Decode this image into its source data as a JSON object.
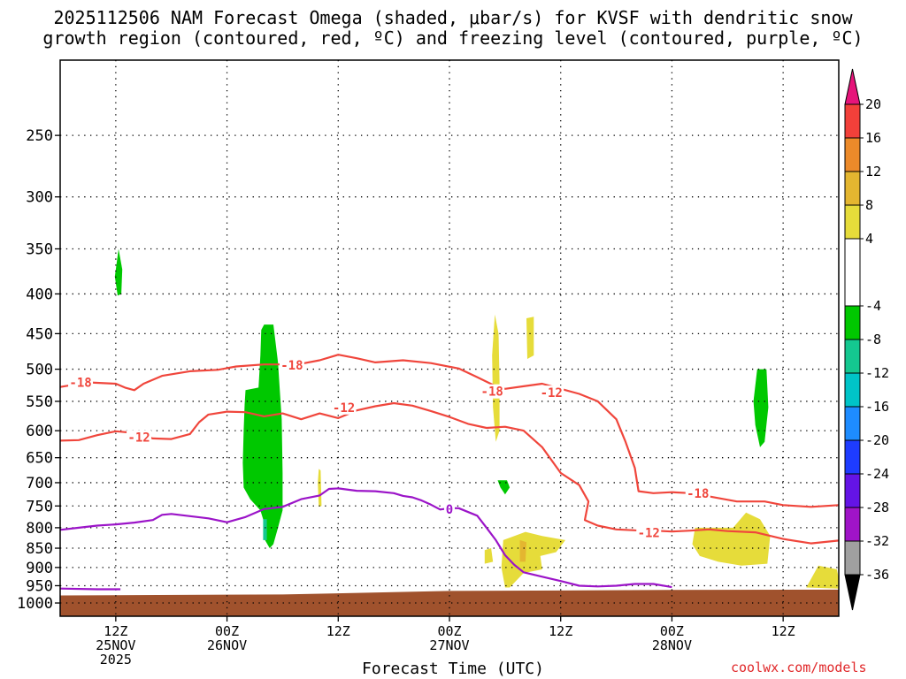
{
  "title_line1": "2025112506 NAM Forecast Omega (shaded, μbar/s) for KVSF with dendritic snow",
  "title_line2": "growth region (contoured, red, ºC) and freezing level (contoured, purple, ºC)",
  "credit": "coolwx.com/models",
  "chart_data": {
    "type": "heatmap",
    "xlabel": "Forecast Time (UTC)",
    "x_range_hours": [
      -18,
      66
    ],
    "y_scale": "pressure (log, inverted)",
    "y_range_mb": [
      1040,
      200
    ],
    "grid": true,
    "y_ticks": [
      "250",
      "300",
      "350",
      "400",
      "450",
      "500",
      "550",
      "600",
      "650",
      "700",
      "750",
      "800",
      "850",
      "900",
      "950",
      "1000"
    ],
    "y_tick_values": [
      250,
      300,
      350,
      400,
      450,
      500,
      550,
      600,
      650,
      700,
      750,
      800,
      850,
      900,
      950,
      1000
    ],
    "x_ticks": [
      {
        "hour": -12,
        "line1": "12Z",
        "line2": "25NOV",
        "line3": "2025"
      },
      {
        "hour": 0,
        "line1": "00Z",
        "line2": "26NOV",
        "line3": ""
      },
      {
        "hour": 12,
        "line1": "12Z",
        "line2": "",
        "line3": ""
      },
      {
        "hour": 24,
        "line1": "00Z",
        "line2": "27NOV",
        "line3": ""
      },
      {
        "hour": 36,
        "line1": "12Z",
        "line2": "",
        "line3": ""
      },
      {
        "hour": 48,
        "line1": "00Z",
        "line2": "28NOV",
        "line3": ""
      },
      {
        "hour": 60,
        "line1": "12Z",
        "line2": "",
        "line3": ""
      }
    ],
    "colorbar": {
      "labels": [
        "20",
        "16",
        "12",
        "8",
        "4",
        "-4",
        "-8",
        "-12",
        "-16",
        "-20",
        "-24",
        "-28",
        "-32",
        "-36"
      ],
      "label_values": [
        20,
        16,
        12,
        8,
        4,
        -4,
        -8,
        -12,
        -16,
        -20,
        -24,
        -28,
        -32,
        -36
      ],
      "bins": [
        {
          "lo": 16,
          "hi": 20,
          "color": "#f2403a"
        },
        {
          "lo": 12,
          "hi": 16,
          "color": "#ec8a2a"
        },
        {
          "lo": 8,
          "hi": 12,
          "color": "#e4b630"
        },
        {
          "lo": 4,
          "hi": 8,
          "color": "#e6dc3a"
        },
        {
          "lo": -4,
          "hi": 4,
          "color": "#ffffff"
        },
        {
          "lo": -8,
          "hi": -4,
          "color": "#00c800"
        },
        {
          "lo": -12,
          "hi": -8,
          "color": "#14c890"
        },
        {
          "lo": -16,
          "hi": -12,
          "color": "#00c4c8"
        },
        {
          "lo": -20,
          "hi": -16,
          "color": "#1e8cff"
        },
        {
          "lo": -24,
          "hi": -20,
          "color": "#1e3cff"
        },
        {
          "lo": -28,
          "hi": -24,
          "color": "#6414e6"
        },
        {
          "lo": -32,
          "hi": -28,
          "color": "#a014c8"
        },
        {
          "lo": -36,
          "hi": -32,
          "color": "#a0a0a0"
        }
      ],
      "over_color": "#e6147a",
      "under_color": "#000000"
    },
    "terrain_color": "#a0522d",
    "terrain": [
      [
        -18,
        978
      ],
      [
        6,
        975
      ],
      [
        24,
        965
      ],
      [
        48,
        962
      ],
      [
        66,
        961
      ]
    ],
    "omega_regions": [
      {
        "color": "#00c800",
        "pts": [
          [
            -11.7,
            350
          ],
          [
            -11.3,
            372
          ],
          [
            -11.4,
            400
          ],
          [
            -11.8,
            402
          ],
          [
            -12.1,
            380
          ]
        ]
      },
      {
        "color": "#00c800",
        "pts": [
          [
            4.0,
            438
          ],
          [
            5.0,
            438
          ],
          [
            5.5,
            490
          ],
          [
            5.9,
            580
          ],
          [
            6.0,
            680
          ],
          [
            6.0,
            760
          ],
          [
            5.5,
            800
          ],
          [
            5.0,
            840
          ],
          [
            4.6,
            850
          ],
          [
            4.1,
            830
          ],
          [
            3.9,
            780
          ],
          [
            3.6,
            760
          ],
          [
            2.5,
            735
          ],
          [
            1.8,
            710
          ],
          [
            1.7,
            660
          ],
          [
            1.8,
            600
          ],
          [
            1.9,
            555
          ],
          [
            2.0,
            532
          ],
          [
            3.4,
            528
          ],
          [
            3.6,
            480
          ],
          [
            3.7,
            445
          ]
        ]
      },
      {
        "color": "#14c890",
        "pts": [
          [
            3.9,
            780
          ],
          [
            4.3,
            780
          ],
          [
            4.3,
            830
          ],
          [
            3.9,
            830
          ]
        ]
      },
      {
        "color": "#e6dc3a",
        "pts": [
          [
            9.9,
            672
          ],
          [
            10.1,
            675
          ],
          [
            10.2,
            750
          ],
          [
            9.9,
            752
          ],
          [
            9.8,
            700
          ]
        ]
      },
      {
        "color": "#e6dc3a",
        "pts": [
          [
            28.9,
            425
          ],
          [
            29.3,
            450
          ],
          [
            29.4,
            520
          ],
          [
            29.4,
            600
          ],
          [
            29.0,
            620
          ],
          [
            28.7,
            560
          ],
          [
            28.6,
            480
          ]
        ]
      },
      {
        "color": "#e6dc3a",
        "pts": [
          [
            32.3,
            430
          ],
          [
            33.1,
            428
          ],
          [
            33.1,
            480
          ],
          [
            32.4,
            485
          ]
        ]
      },
      {
        "color": "#00c800",
        "pts": [
          [
            29.2,
            695
          ],
          [
            30.2,
            695
          ],
          [
            30.5,
            710
          ],
          [
            30.0,
            725
          ],
          [
            29.5,
            710
          ]
        ]
      },
      {
        "color": "#e6dc3a",
        "pts": [
          [
            27.8,
            855
          ],
          [
            28.5,
            850
          ],
          [
            28.7,
            885
          ],
          [
            27.8,
            890
          ]
        ]
      },
      {
        "color": "#e6dc3a",
        "pts": [
          [
            29.8,
            830
          ],
          [
            32.2,
            810
          ],
          [
            34.0,
            820
          ],
          [
            36.5,
            830
          ],
          [
            35.5,
            860
          ],
          [
            33.8,
            870
          ],
          [
            34.0,
            905
          ],
          [
            32.0,
            915
          ],
          [
            30.5,
            955
          ],
          [
            30.0,
            955
          ],
          [
            29.6,
            900
          ]
        ]
      },
      {
        "color": "#e4b630",
        "pts": [
          [
            31.6,
            830
          ],
          [
            32.3,
            835
          ],
          [
            32.2,
            885
          ],
          [
            31.6,
            885
          ]
        ]
      },
      {
        "color": "#00c800",
        "pts": [
          [
            57.2,
            500
          ],
          [
            58.2,
            500
          ],
          [
            58.4,
            560
          ],
          [
            58.0,
            620
          ],
          [
            57.5,
            630
          ],
          [
            57.0,
            590
          ],
          [
            56.8,
            550
          ]
        ]
      },
      {
        "color": "#e6dc3a",
        "pts": [
          [
            50.5,
            800
          ],
          [
            54.6,
            800
          ],
          [
            56.0,
            765
          ],
          [
            57.5,
            780
          ],
          [
            58.6,
            820
          ],
          [
            58.3,
            890
          ],
          [
            55.5,
            895
          ],
          [
            53.0,
            885
          ],
          [
            51.0,
            870
          ],
          [
            50.2,
            840
          ]
        ]
      },
      {
        "color": "#e6dc3a",
        "pts": [
          [
            62.5,
            955
          ],
          [
            63.8,
            895
          ],
          [
            65.8,
            905
          ],
          [
            66,
            930
          ],
          [
            66,
            958
          ]
        ]
      }
    ],
    "contours": [
      {
        "name": "-18",
        "color": "#f0463c",
        "label_color": "#f0463c",
        "points": [
          [
            -18,
            527
          ],
          [
            -15,
            520
          ],
          [
            -12,
            522
          ],
          [
            -11,
            528
          ],
          [
            -10,
            532
          ],
          [
            -9,
            522
          ],
          [
            -7,
            510
          ],
          [
            -4,
            503
          ],
          [
            -1,
            501
          ],
          [
            1,
            496
          ],
          [
            4,
            493
          ],
          [
            6,
            493
          ],
          [
            8,
            492
          ],
          [
            10,
            487
          ],
          [
            12,
            479
          ],
          [
            14,
            484
          ],
          [
            16,
            490
          ],
          [
            19,
            487
          ],
          [
            22,
            491
          ],
          [
            25,
            499
          ],
          [
            27,
            512
          ],
          [
            29,
            526
          ],
          [
            30,
            530
          ],
          [
            32,
            526
          ],
          [
            34,
            522
          ],
          [
            36,
            530
          ],
          [
            38,
            538
          ],
          [
            40,
            550
          ],
          [
            42,
            580
          ],
          [
            43,
            620
          ],
          [
            44,
            670
          ],
          [
            44.4,
            718
          ],
          [
            46,
            722
          ],
          [
            48,
            720
          ],
          [
            50,
            722
          ],
          [
            52,
            729
          ],
          [
            55,
            740
          ],
          [
            58,
            740
          ],
          [
            60,
            748
          ],
          [
            63,
            752
          ],
          [
            66,
            748
          ]
        ],
        "labels": [
          [
            -15.8,
            520
          ],
          [
            7.0,
            494
          ],
          [
            28.6,
            534
          ],
          [
            50.8,
            722
          ]
        ]
      },
      {
        "name": "-12",
        "color": "#f0463c",
        "label_color": "#f0463c",
        "points": [
          [
            -18,
            618
          ],
          [
            -16,
            617
          ],
          [
            -14,
            608
          ],
          [
            -12,
            601
          ],
          [
            -10,
            604
          ],
          [
            -8,
            614
          ],
          [
            -6,
            615
          ],
          [
            -4,
            606
          ],
          [
            -3,
            585
          ],
          [
            -2,
            572
          ],
          [
            0,
            567
          ],
          [
            2,
            568
          ],
          [
            4,
            575
          ],
          [
            6,
            570
          ],
          [
            8,
            580
          ],
          [
            10,
            570
          ],
          [
            12,
            578
          ],
          [
            14,
            565
          ],
          [
            16,
            558
          ],
          [
            18,
            553
          ],
          [
            20,
            557
          ],
          [
            22,
            566
          ],
          [
            24,
            576
          ],
          [
            26,
            588
          ],
          [
            28,
            595
          ],
          [
            30,
            593
          ],
          [
            32,
            600
          ],
          [
            34,
            630
          ],
          [
            36,
            680
          ],
          [
            38,
            705
          ],
          [
            39,
            740
          ],
          [
            38.6,
            782
          ],
          [
            40,
            795
          ],
          [
            42,
            804
          ],
          [
            44,
            806
          ],
          [
            46,
            807
          ],
          [
            48,
            809
          ],
          [
            50,
            807
          ],
          [
            52,
            804
          ],
          [
            54,
            808
          ],
          [
            57,
            811
          ],
          [
            60,
            827
          ],
          [
            63,
            838
          ],
          [
            66,
            831
          ]
        ],
        "labels": [
          [
            -9.5,
            612
          ],
          [
            12.6,
            560
          ],
          [
            35.0,
            536
          ],
          [
            45.5,
            812
          ]
        ]
      },
      {
        "name": "0",
        "color": "#9b14c8",
        "label_color": "#9b14c8",
        "points": [
          [
            -18,
            805
          ],
          [
            -16,
            800
          ],
          [
            -14,
            795
          ],
          [
            -12,
            792
          ],
          [
            -10,
            788
          ],
          [
            -8,
            782
          ],
          [
            -7,
            770
          ],
          [
            -6,
            768
          ],
          [
            -4,
            773
          ],
          [
            -2,
            778
          ],
          [
            0,
            787
          ],
          [
            2,
            775
          ],
          [
            4,
            757
          ],
          [
            6,
            752
          ],
          [
            8,
            735
          ],
          [
            10,
            727
          ],
          [
            11,
            713
          ],
          [
            12,
            712
          ],
          [
            14,
            717
          ],
          [
            16,
            718
          ],
          [
            18,
            722
          ],
          [
            19,
            728
          ],
          [
            20,
            731
          ],
          [
            21,
            738
          ],
          [
            22,
            747
          ],
          [
            23,
            758
          ],
          [
            24,
            755
          ],
          [
            25,
            755
          ],
          [
            27,
            772
          ],
          [
            28,
            800
          ],
          [
            29,
            830
          ],
          [
            30,
            868
          ],
          [
            31,
            893
          ],
          [
            32,
            913
          ],
          [
            34,
            925
          ],
          [
            36,
            937
          ],
          [
            38,
            950
          ],
          [
            40,
            952
          ],
          [
            42,
            950
          ],
          [
            44,
            945
          ],
          [
            46,
            945
          ],
          [
            48,
            954
          ]
        ],
        "labels": [
          [
            24.0,
            757
          ]
        ]
      },
      {
        "name": "0",
        "color": "#9b14c8",
        "label_color": "#9b14c8",
        "points": [
          [
            -18,
            958
          ],
          [
            -14,
            960
          ],
          [
            -11.5,
            960
          ]
        ],
        "labels": []
      }
    ]
  }
}
